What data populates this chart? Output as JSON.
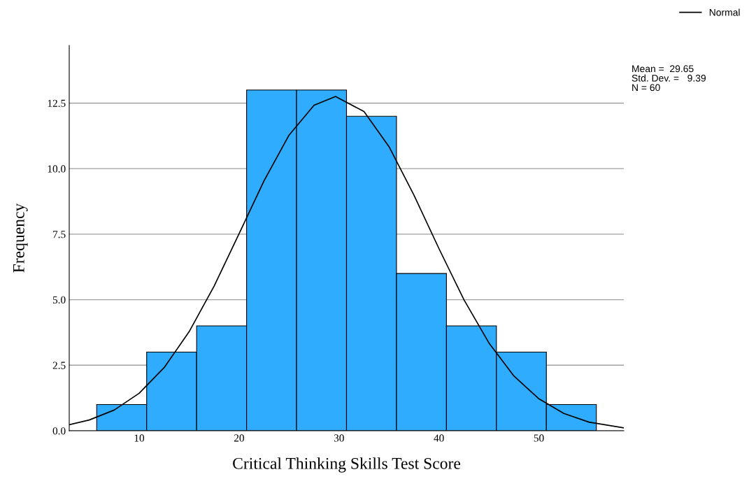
{
  "chart_data": {
    "type": "histogram",
    "xlabel": "Critical Thinking Skills Test Score",
    "ylabel": "Frequency",
    "bins": [
      5.75,
      10.75,
      15.75,
      20.75,
      25.75,
      30.75,
      35.75,
      40.75,
      45.75,
      50.75,
      55.75
    ],
    "values": [
      1,
      3,
      4,
      13,
      13,
      12,
      6,
      4,
      3,
      1
    ],
    "color": "#30acff",
    "series": [
      {
        "type": "line",
        "name": "Normal",
        "color": "#000000",
        "x": [
          3,
          5,
          7.5,
          10,
          12.5,
          15,
          17.5,
          20,
          22.5,
          25,
          27.5,
          29.65,
          32.5,
          35,
          37.5,
          40,
          42.5,
          45,
          47.5,
          50,
          52.5,
          55,
          58.5
        ],
        "values": [
          0.23,
          0.41,
          0.79,
          1.43,
          2.41,
          3.78,
          5.52,
          7.52,
          9.54,
          11.28,
          12.42,
          12.75,
          12.18,
          10.84,
          8.99,
          6.95,
          5.0,
          3.35,
          2.09,
          1.22,
          0.66,
          0.33,
          0.11
        ]
      }
    ],
    "xlim": [
      3,
      58.5
    ],
    "ylim": [
      0,
      14.7
    ],
    "xticks": [
      10,
      20,
      30,
      40,
      50
    ],
    "yticks": [
      {
        "value": 0,
        "label": "0.0"
      },
      {
        "value": 2.5,
        "label": "2.5"
      },
      {
        "value": 5,
        "label": "5.0"
      },
      {
        "value": 7.5,
        "label": "7.5"
      },
      {
        "value": 10,
        "label": "10.0"
      },
      12.5
    ],
    "grid": "y",
    "legend": "top right",
    "annotations": [
      "Mean =  29.65\nStd. Dev. =   9.39\nN = 60"
    ]
  }
}
